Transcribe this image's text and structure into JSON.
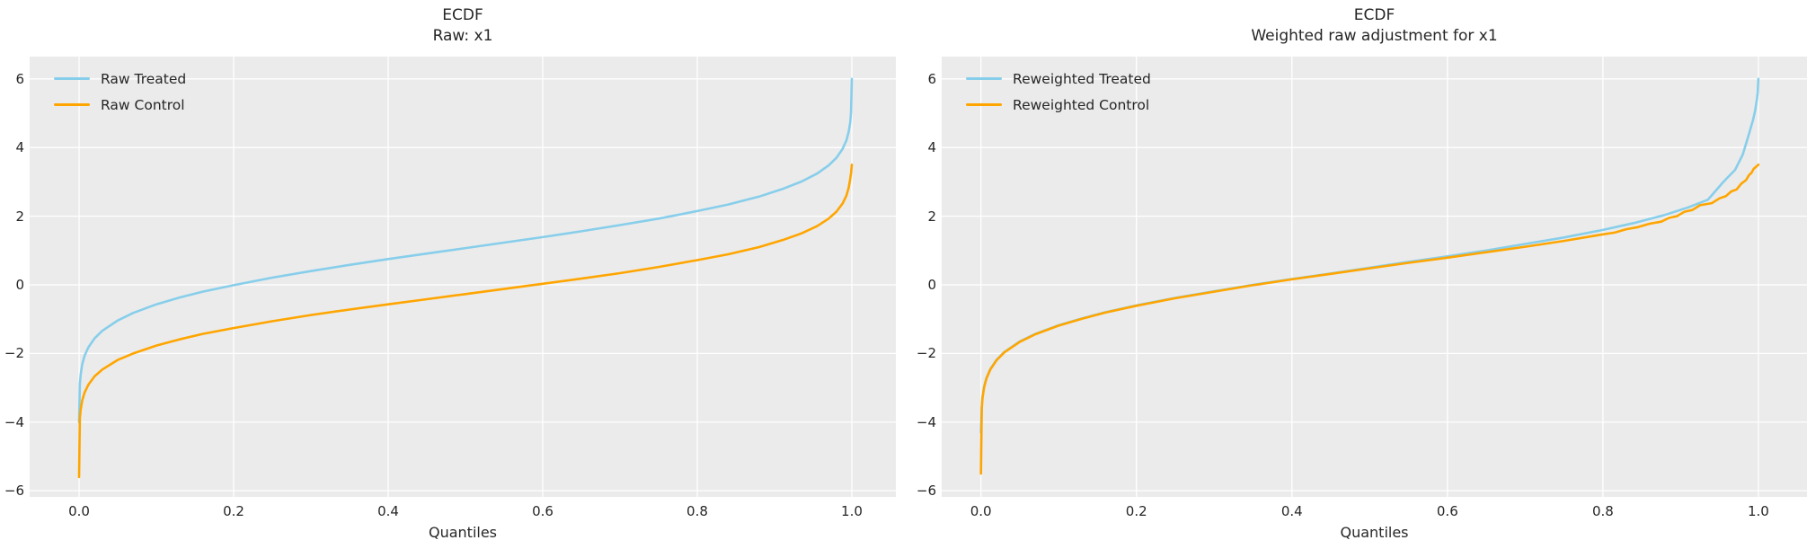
{
  "figure": {
    "kind": "matplotlib-figure",
    "background": "#ffffff",
    "axes_background": "#ebebeb",
    "grid_color": "#ffffff",
    "text_color": "#262626"
  },
  "chart_data": [
    {
      "type": "line",
      "title": "ECDF",
      "subtitle": "Raw: x1",
      "xlabel": "Quantiles",
      "grid": true,
      "legend_position": "upper left",
      "xlim": [
        -0.064,
        1.057
      ],
      "ylim": [
        -6.18,
        6.65
      ],
      "x_ticks": [
        0,
        0.2,
        0.4,
        0.6,
        0.8,
        1.0
      ],
      "x_tick_labels": [
        "0.0",
        "0.2",
        "0.4",
        "0.6",
        "0.8",
        "1.0"
      ],
      "y_ticks": [
        6,
        4,
        2,
        0,
        -2,
        -4,
        -6
      ],
      "y_tick_labels": [
        "6",
        "4",
        "2",
        "0",
        "−2",
        "−4",
        "−6"
      ],
      "series": [
        {
          "name": "Raw Treated",
          "color": "#87CEEB",
          "points": [
            [
              0,
              -4.0
            ],
            [
              0.001,
              -2.89
            ],
            [
              0.002,
              -2.61
            ],
            [
              0.004,
              -2.32
            ],
            [
              0.007,
              -2.07
            ],
            [
              0.012,
              -1.82
            ],
            [
              0.02,
              -1.56
            ],
            [
              0.03,
              -1.34
            ],
            [
              0.05,
              -1.04
            ],
            [
              0.07,
              -0.82
            ],
            [
              0.1,
              -0.57
            ],
            [
              0.13,
              -0.37
            ],
            [
              0.16,
              -0.2
            ],
            [
              0.2,
              -0.01
            ],
            [
              0.25,
              0.21
            ],
            [
              0.3,
              0.4
            ],
            [
              0.35,
              0.58
            ],
            [
              0.4,
              0.75
            ],
            [
              0.45,
              0.91
            ],
            [
              0.5,
              1.07
            ],
            [
              0.55,
              1.23
            ],
            [
              0.6,
              1.39
            ],
            [
              0.65,
              1.56
            ],
            [
              0.7,
              1.74
            ],
            [
              0.75,
              1.93
            ],
            [
              0.8,
              2.15
            ],
            [
              0.84,
              2.34
            ],
            [
              0.88,
              2.57
            ],
            [
              0.91,
              2.79
            ],
            [
              0.935,
              3.01
            ],
            [
              0.955,
              3.24
            ],
            [
              0.97,
              3.48
            ],
            [
              0.98,
              3.7
            ],
            [
              0.988,
              3.96
            ],
            [
              0.993,
              4.21
            ],
            [
              0.996,
              4.46
            ],
            [
              0.998,
              4.75
            ],
            [
              0.999,
              5.03
            ],
            [
              1,
              6.0
            ]
          ]
        },
        {
          "name": "Raw Control",
          "color": "#FFA500",
          "points": [
            [
              0,
              -5.6
            ],
            [
              0.001,
              -3.88
            ],
            [
              0.002,
              -3.64
            ],
            [
              0.004,
              -3.37
            ],
            [
              0.007,
              -3.14
            ],
            [
              0.012,
              -2.91
            ],
            [
              0.02,
              -2.67
            ],
            [
              0.03,
              -2.47
            ],
            [
              0.05,
              -2.19
            ],
            [
              0.07,
              -2.0
            ],
            [
              0.1,
              -1.77
            ],
            [
              0.13,
              -1.59
            ],
            [
              0.16,
              -1.43
            ],
            [
              0.2,
              -1.26
            ],
            [
              0.25,
              -1.06
            ],
            [
              0.3,
              -0.88
            ],
            [
              0.35,
              -0.72
            ],
            [
              0.4,
              -0.57
            ],
            [
              0.45,
              -0.42
            ],
            [
              0.5,
              -0.27
            ],
            [
              0.55,
              -0.12
            ],
            [
              0.6,
              0.03
            ],
            [
              0.65,
              0.18
            ],
            [
              0.7,
              0.34
            ],
            [
              0.75,
              0.52
            ],
            [
              0.8,
              0.72
            ],
            [
              0.84,
              0.89
            ],
            [
              0.88,
              1.1
            ],
            [
              0.91,
              1.3
            ],
            [
              0.935,
              1.5
            ],
            [
              0.955,
              1.71
            ],
            [
              0.97,
              1.93
            ],
            [
              0.98,
              2.13
            ],
            [
              0.988,
              2.37
            ],
            [
              0.993,
              2.6
            ],
            [
              0.996,
              2.83
            ],
            [
              0.998,
              3.1
            ],
            [
              0.999,
              3.25
            ],
            [
              1,
              3.5
            ]
          ]
        }
      ]
    },
    {
      "type": "line",
      "title": "ECDF",
      "subtitle": "Weighted raw adjustment for x1",
      "xlabel": "Quantiles",
      "grid": true,
      "legend_position": "upper left",
      "xlim": [
        -0.0505,
        1.0625
      ],
      "ylim": [
        -6.18,
        6.65
      ],
      "x_ticks": [
        0,
        0.2,
        0.4,
        0.6,
        0.8,
        1.0
      ],
      "x_tick_labels": [
        "0.0",
        "0.2",
        "0.4",
        "0.6",
        "0.8",
        "1.0"
      ],
      "y_ticks": [
        6,
        4,
        2,
        0,
        -2,
        -4,
        -6
      ],
      "y_tick_labels": [
        "6",
        "4",
        "2",
        "0",
        "−2",
        "−4",
        "−6"
      ],
      "series": [
        {
          "name": "Reweighted Treated",
          "color": "#87CEEB",
          "points": [
            [
              0,
              -4.3
            ],
            [
              0.001,
              -3.55
            ],
            [
              0.002,
              -3.27
            ],
            [
              0.004,
              -2.97
            ],
            [
              0.007,
              -2.72
            ],
            [
              0.012,
              -2.46
            ],
            [
              0.02,
              -2.19
            ],
            [
              0.03,
              -1.96
            ],
            [
              0.05,
              -1.65
            ],
            [
              0.07,
              -1.43
            ],
            [
              0.1,
              -1.18
            ],
            [
              0.13,
              -0.98
            ],
            [
              0.16,
              -0.8
            ],
            [
              0.2,
              -0.6
            ],
            [
              0.25,
              -0.38
            ],
            [
              0.3,
              -0.19
            ],
            [
              0.35,
              0.0
            ],
            [
              0.4,
              0.17
            ],
            [
              0.45,
              0.33
            ],
            [
              0.5,
              0.5
            ],
            [
              0.55,
              0.67
            ],
            [
              0.6,
              0.83
            ],
            [
              0.65,
              1.0
            ],
            [
              0.7,
              1.19
            ],
            [
              0.75,
              1.38
            ],
            [
              0.8,
              1.6
            ],
            [
              0.84,
              1.8
            ],
            [
              0.88,
              2.04
            ],
            [
              0.91,
              2.26
            ],
            [
              0.935,
              2.48
            ],
            [
              0.955,
              3.0
            ],
            [
              0.97,
              3.35
            ],
            [
              0.98,
              3.8
            ],
            [
              0.988,
              4.4
            ],
            [
              0.993,
              4.8
            ],
            [
              0.996,
              5.1
            ],
            [
              0.998,
              5.4
            ],
            [
              0.999,
              5.6
            ],
            [
              1,
              6.0
            ]
          ]
        },
        {
          "name": "Reweighted Control",
          "color": "#FFA500",
          "points": [
            [
              0,
              -5.5
            ],
            [
              0.001,
              -3.6
            ],
            [
              0.002,
              -3.3
            ],
            [
              0.004,
              -2.99
            ],
            [
              0.007,
              -2.73
            ],
            [
              0.012,
              -2.47
            ],
            [
              0.02,
              -2.2
            ],
            [
              0.03,
              -1.97
            ],
            [
              0.05,
              -1.66
            ],
            [
              0.07,
              -1.44
            ],
            [
              0.1,
              -1.19
            ],
            [
              0.13,
              -0.99
            ],
            [
              0.16,
              -0.81
            ],
            [
              0.2,
              -0.61
            ],
            [
              0.25,
              -0.39
            ],
            [
              0.3,
              -0.2
            ],
            [
              0.35,
              -0.01
            ],
            [
              0.4,
              0.16
            ],
            [
              0.45,
              0.32
            ],
            [
              0.5,
              0.48
            ],
            [
              0.55,
              0.64
            ],
            [
              0.6,
              0.79
            ],
            [
              0.65,
              0.95
            ],
            [
              0.7,
              1.11
            ],
            [
              0.75,
              1.28
            ],
            [
              0.8,
              1.47
            ],
            [
              0.815,
              1.52
            ],
            [
              0.83,
              1.62
            ],
            [
              0.845,
              1.68
            ],
            [
              0.86,
              1.78
            ],
            [
              0.875,
              1.84
            ],
            [
              0.885,
              1.95
            ],
            [
              0.895,
              2.0
            ],
            [
              0.905,
              2.13
            ],
            [
              0.915,
              2.18
            ],
            [
              0.925,
              2.32
            ],
            [
              0.94,
              2.38
            ],
            [
              0.95,
              2.52
            ],
            [
              0.958,
              2.58
            ],
            [
              0.965,
              2.72
            ],
            [
              0.972,
              2.78
            ],
            [
              0.978,
              2.95
            ],
            [
              0.984,
              3.05
            ],
            [
              0.988,
              3.2
            ],
            [
              0.991,
              3.26
            ],
            [
              0.994,
              3.38
            ],
            [
              0.997,
              3.44
            ],
            [
              1,
              3.5
            ]
          ]
        }
      ]
    }
  ]
}
